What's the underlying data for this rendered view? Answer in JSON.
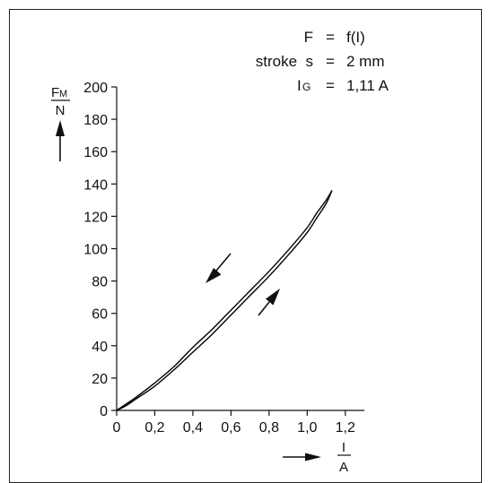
{
  "chart_data": {
    "type": "line",
    "annotation": {
      "line1": {
        "lhs": "F",
        "eq": "=",
        "rhs": "f(I)"
      },
      "line2": {
        "lhs": "stroke  s",
        "eq": "=",
        "rhs": "2 mm"
      },
      "line3": {
        "lhs_main": "I",
        "lhs_sub": "G",
        "eq": "=",
        "rhs": "1,11 A"
      }
    },
    "y_axis": {
      "label_main": "F",
      "label_sub": "M",
      "label_unit": "N",
      "ticks": [
        0,
        20,
        40,
        60,
        80,
        100,
        120,
        140,
        160,
        180,
        200
      ],
      "tick_labels": [
        "0",
        "20",
        "40",
        "60",
        "80",
        "100",
        "120",
        "140",
        "160",
        "180",
        "200"
      ],
      "range": [
        0,
        200
      ]
    },
    "x_axis": {
      "label_num": "I",
      "label_unit": "A",
      "ticks": [
        0,
        0.2,
        0.4,
        0.6,
        0.8,
        1.0,
        1.2
      ],
      "tick_labels": [
        "0",
        "0,2",
        "0,4",
        "0,6",
        "0,8",
        "1,0",
        "1,2"
      ],
      "range": [
        0,
        1.3
      ]
    },
    "series": [
      {
        "direction": "increasing",
        "color": "#000000",
        "x": [
          0,
          0.05,
          0.1,
          0.2,
          0.3,
          0.4,
          0.5,
          0.6,
          0.7,
          0.8,
          0.9,
          1.0,
          1.05,
          1.1,
          1.13
        ],
        "y": [
          0,
          3,
          7,
          15,
          25,
          36,
          47,
          59,
          71,
          83,
          96,
          110,
          119,
          128,
          136
        ]
      },
      {
        "direction": "decreasing",
        "color": "#000000",
        "x": [
          1.13,
          1.1,
          1.05,
          1.0,
          0.9,
          0.8,
          0.7,
          0.6,
          0.5,
          0.4,
          0.3,
          0.2,
          0.1,
          0.05,
          0
        ],
        "y": [
          136,
          130,
          122,
          113,
          99,
          86,
          74,
          62,
          50,
          39,
          27,
          17,
          8,
          4,
          0
        ]
      }
    ],
    "grid": false,
    "legend": "none"
  }
}
